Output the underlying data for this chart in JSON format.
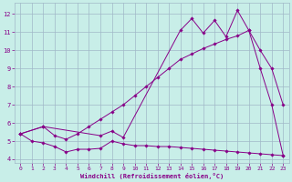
{
  "xlabel": "Windchill (Refroidissement éolien,°C)",
  "bg_color": "#c8eee8",
  "grid_color": "#a0b8c8",
  "line_color": "#880088",
  "xlim": [
    -0.5,
    23.5
  ],
  "ylim": [
    3.8,
    12.6
  ],
  "yticks": [
    4,
    5,
    6,
    7,
    8,
    9,
    10,
    11,
    12
  ],
  "xticks": [
    0,
    1,
    2,
    3,
    4,
    5,
    6,
    7,
    8,
    9,
    10,
    11,
    12,
    13,
    14,
    15,
    16,
    17,
    18,
    19,
    20,
    21,
    22,
    23
  ],
  "line_flat_x": [
    0,
    1,
    2,
    3,
    4,
    5,
    6,
    7,
    8,
    9,
    10,
    11,
    12,
    13,
    14,
    15,
    16,
    17,
    18,
    19,
    20,
    21,
    22,
    23
  ],
  "line_flat_y": [
    5.4,
    5.0,
    4.9,
    4.7,
    4.4,
    4.55,
    4.55,
    4.6,
    5.0,
    4.85,
    4.75,
    4.75,
    4.7,
    4.7,
    4.65,
    4.6,
    4.55,
    4.5,
    4.45,
    4.4,
    4.35,
    4.3,
    4.25,
    4.2
  ],
  "line_mid_x": [
    0,
    2,
    3,
    4,
    5,
    6,
    7,
    8,
    9,
    10,
    11,
    12,
    13,
    14,
    15,
    16,
    17,
    18,
    19,
    20,
    21,
    22,
    23
  ],
  "line_mid_y": [
    5.4,
    5.8,
    5.3,
    5.1,
    5.4,
    5.8,
    6.2,
    6.6,
    7.0,
    7.5,
    8.0,
    8.5,
    9.0,
    9.5,
    9.8,
    10.1,
    10.35,
    10.6,
    10.8,
    11.1,
    10.0,
    9.0,
    7.0
  ],
  "line_top_x": [
    0,
    2,
    7,
    8,
    9,
    14,
    15,
    16,
    17,
    18,
    19,
    20,
    21,
    22,
    23
  ],
  "line_top_y": [
    5.4,
    5.8,
    5.3,
    5.55,
    5.2,
    11.1,
    11.75,
    10.95,
    11.65,
    10.75,
    12.2,
    11.1,
    9.0,
    7.0,
    4.2
  ]
}
